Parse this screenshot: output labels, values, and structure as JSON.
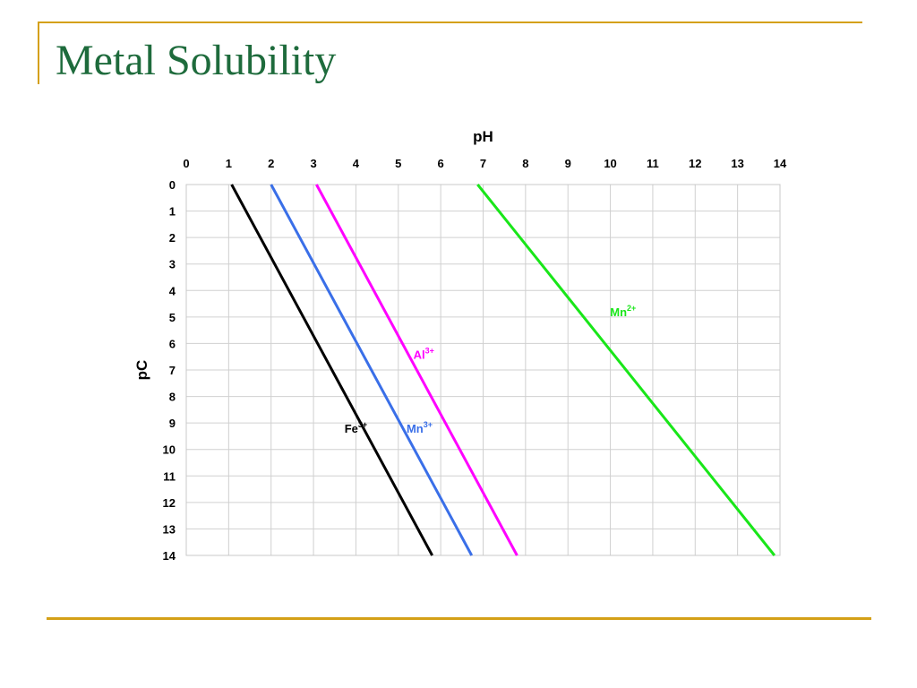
{
  "slide": {
    "title": "Metal Solubility"
  },
  "colors": {
    "accent_rule": "#d4a017",
    "title": "#1e6b3c",
    "grid": "#d0d0d0"
  },
  "chart_data": {
    "type": "line",
    "xlabel": "pH",
    "ylabel": "pC",
    "x_axis_position": "top",
    "y_axis_inverted": true,
    "xlim": [
      0,
      14
    ],
    "ylim": [
      0,
      14
    ],
    "xticks": [
      "0",
      "1",
      "2",
      "3",
      "4",
      "5",
      "6",
      "7",
      "8",
      "9",
      "10",
      "11",
      "12",
      "13",
      "14"
    ],
    "yticks": [
      "0",
      "1",
      "2",
      "3",
      "4",
      "5",
      "6",
      "7",
      "8",
      "9",
      "10",
      "11",
      "12",
      "13",
      "14"
    ],
    "grid": true,
    "series": [
      {
        "name": "Fe",
        "superscript": "3+",
        "color": "#000000",
        "x": [
          1.07,
          5.8
        ],
        "y": [
          0,
          14
        ]
      },
      {
        "name": "Mn",
        "superscript": "3+",
        "color": "#3a6fe8",
        "x": [
          2.0,
          6.73
        ],
        "y": [
          0,
          14
        ]
      },
      {
        "name": "Al",
        "superscript": "3+",
        "color": "#ff00ff",
        "x": [
          3.07,
          7.8
        ],
        "y": [
          0,
          14
        ]
      },
      {
        "name": "Mn",
        "superscript": "2+",
        "color": "#19e619",
        "x": [
          6.87,
          13.87
        ],
        "y": [
          0,
          14
        ]
      }
    ],
    "annotations": [
      {
        "series": 0,
        "x": 4.0,
        "y": 9.2
      },
      {
        "series": 1,
        "x": 5.5,
        "y": 9.2
      },
      {
        "series": 2,
        "x": 5.6,
        "y": 6.4
      },
      {
        "series": 3,
        "x": 10.3,
        "y": 4.8
      }
    ]
  }
}
